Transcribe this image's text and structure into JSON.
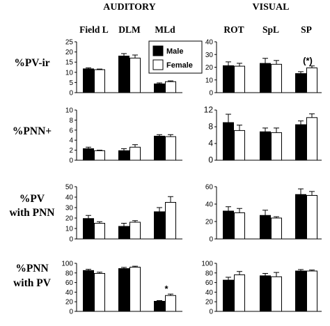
{
  "headers": {
    "left": "AUDITORY",
    "right": "VISUAL"
  },
  "column_labels": {
    "left": [
      "Field L",
      "DLM",
      "MLd"
    ],
    "right": [
      "ROT",
      "SpL",
      "SP"
    ]
  },
  "row_labels": [
    [
      "%PV-ir"
    ],
    [
      "%PNN+"
    ],
    [
      "%PV",
      "with PNN"
    ],
    [
      "%PNN",
      "with PV"
    ]
  ],
  "legend": {
    "male": "Male",
    "female": "Female"
  },
  "colors": {
    "male": "#000000",
    "female": "#ffffff"
  },
  "chart_data": [
    {
      "type": "bar",
      "panel": "auditory-pv-ir",
      "categories": [
        "Field L",
        "DLM",
        "MLd"
      ],
      "ylim": [
        0,
        25
      ],
      "ticks": [
        0,
        5,
        10,
        15,
        20,
        25
      ],
      "series": [
        {
          "name": "Male",
          "values": [
            11.7,
            18,
            4.3
          ],
          "errors": [
            0.5,
            1.2,
            0.5
          ]
        },
        {
          "name": "Female",
          "values": [
            11.3,
            17,
            5.4
          ],
          "errors": [
            0.3,
            1.5,
            0.4
          ]
        }
      ],
      "annotations": []
    },
    {
      "type": "bar",
      "panel": "visual-pv-ir",
      "categories": [
        "ROT",
        "SpL",
        "SP"
      ],
      "ylim": [
        0,
        40
      ],
      "ticks": [
        0,
        10,
        20,
        30,
        40
      ],
      "series": [
        {
          "name": "Male",
          "values": [
            21.2,
            23,
            15
          ],
          "errors": [
            3,
            4,
            1.5
          ]
        },
        {
          "name": "Female",
          "values": [
            20.8,
            22.3,
            19.5
          ],
          "errors": [
            2.3,
            3,
            1.5
          ]
        }
      ],
      "annotations": [
        {
          "category": "SP",
          "text": "(*)"
        }
      ]
    },
    {
      "type": "bar",
      "panel": "auditory-pnn",
      "categories": [
        "Field L",
        "DLM",
        "MLd"
      ],
      "ylim": [
        0,
        10
      ],
      "ticks": [
        0,
        2,
        4,
        6,
        8,
        10
      ],
      "series": [
        {
          "name": "Male",
          "values": [
            2.3,
            1.9,
            4.8
          ],
          "errors": [
            0.3,
            0.4,
            0.3
          ]
        },
        {
          "name": "Female",
          "values": [
            1.9,
            2.6,
            4.7
          ],
          "errors": [
            0.1,
            0.5,
            0.4
          ]
        }
      ],
      "annotations": []
    },
    {
      "type": "bar",
      "panel": "visual-pnn",
      "categories": [
        "ROT",
        "SpL",
        "SP"
      ],
      "ylim": [
        0,
        12
      ],
      "ticks": [
        0,
        4,
        8,
        12
      ],
      "series": [
        {
          "name": "Male",
          "values": [
            9,
            6.8,
            8.5
          ],
          "errors": [
            2,
            0.9,
            0.9
          ]
        },
        {
          "name": "Female",
          "values": [
            7.1,
            6.6,
            10.2
          ],
          "errors": [
            1.3,
            1.1,
            0.9
          ]
        }
      ],
      "annotations": []
    },
    {
      "type": "bar",
      "panel": "auditory-pv-with-pnn",
      "categories": [
        "Field L",
        "DLM",
        "MLd"
      ],
      "ylim": [
        0,
        50
      ],
      "ticks": [
        0,
        10,
        20,
        30,
        40,
        50
      ],
      "series": [
        {
          "name": "Male",
          "values": [
            19.5,
            12,
            26
          ],
          "errors": [
            3,
            3,
            4
          ]
        },
        {
          "name": "Female",
          "values": [
            15,
            16,
            35
          ],
          "errors": [
            1.5,
            1.5,
            5.5
          ]
        }
      ],
      "annotations": []
    },
    {
      "type": "bar",
      "panel": "visual-pv-with-pnn",
      "categories": [
        "ROT",
        "SpL",
        "SP"
      ],
      "ylim": [
        0,
        60
      ],
      "ticks": [
        0,
        20,
        40,
        60
      ],
      "series": [
        {
          "name": "Male",
          "values": [
            32,
            27,
            51
          ],
          "errors": [
            5,
            6,
            6.5
          ]
        },
        {
          "name": "Female",
          "values": [
            30,
            24,
            50
          ],
          "errors": [
            5,
            1.5,
            4.5
          ]
        }
      ],
      "annotations": []
    },
    {
      "type": "bar",
      "panel": "auditory-pnn-with-pv",
      "categories": [
        "Field L",
        "DLM",
        "MLd"
      ],
      "ylim": [
        0,
        100
      ],
      "ticks": [
        0,
        20,
        40,
        60,
        80,
        100
      ],
      "series": [
        {
          "name": "Male",
          "values": [
            85,
            89,
            21
          ],
          "errors": [
            2.5,
            2.5,
            1.5
          ]
        },
        {
          "name": "Female",
          "values": [
            79,
            92,
            33
          ],
          "errors": [
            2.5,
            2,
            3
          ]
        }
      ],
      "annotations": [
        {
          "category": "MLd",
          "text": "*"
        }
      ]
    },
    {
      "type": "bar",
      "panel": "visual-pnn-with-pv",
      "categories": [
        "ROT",
        "SpL",
        "SP"
      ],
      "ylim": [
        0,
        100
      ],
      "ticks": [
        0,
        20,
        40,
        60,
        80,
        100
      ],
      "series": [
        {
          "name": "Male",
          "values": [
            65,
            74,
            84
          ],
          "errors": [
            6,
            5,
            3
          ]
        },
        {
          "name": "Female",
          "values": [
            76,
            72,
            84
          ],
          "errors": [
            7,
            9,
            2
          ]
        }
      ],
      "annotations": []
    }
  ]
}
